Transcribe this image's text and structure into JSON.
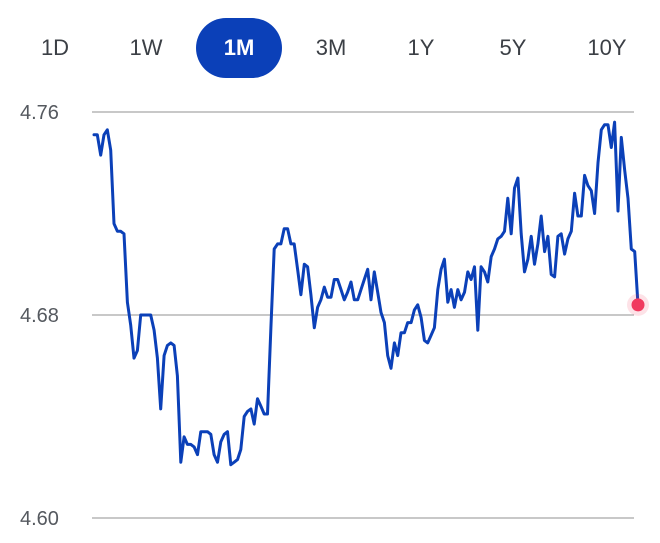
{
  "range_selector": {
    "tabs": [
      {
        "label": "1D",
        "active": false
      },
      {
        "label": "1W",
        "active": false
      },
      {
        "label": "1M",
        "active": true
      },
      {
        "label": "3M",
        "active": false
      },
      {
        "label": "1Y",
        "active": false
      },
      {
        "label": "5Y",
        "active": false
      },
      {
        "label": "10Y",
        "active": false
      }
    ]
  },
  "colors": {
    "line": "#0b40b8",
    "active_tab": "#0b40b8",
    "endpoint": "#f03a5f",
    "grid": "#c8c8c8"
  },
  "chart_data": {
    "type": "line",
    "grid": true,
    "ylim": [
      4.6,
      4.76
    ],
    "yticks": [
      {
        "value": 4.76,
        "label": "4.76"
      },
      {
        "value": 4.68,
        "label": "4.68"
      },
      {
        "value": 4.6,
        "label": "4.60"
      }
    ],
    "series": [
      {
        "values": [
          4.751,
          4.751,
          4.743,
          4.751,
          4.753,
          4.745,
          4.716,
          4.713,
          4.713,
          4.712,
          4.685,
          4.676,
          4.663,
          4.666,
          4.68,
          4.68,
          4.68,
          4.68,
          4.674,
          4.663,
          4.643,
          4.664,
          4.668,
          4.669,
          4.668,
          4.656,
          4.622,
          4.632,
          4.629,
          4.629,
          4.628,
          4.625,
          4.634,
          4.634,
          4.634,
          4.633,
          4.625,
          4.622,
          4.63,
          4.633,
          4.634,
          4.621,
          4.622,
          4.623,
          4.627,
          4.64,
          4.642,
          4.643,
          4.637,
          4.647,
          4.644,
          4.641,
          4.641,
          4.675,
          4.706,
          4.708,
          4.708,
          4.714,
          4.714,
          4.708,
          4.708,
          4.698,
          4.688,
          4.7,
          4.699,
          4.688,
          4.675,
          4.683,
          4.686,
          4.691,
          4.687,
          4.687,
          4.694,
          4.694,
          4.69,
          4.686,
          4.689,
          4.693,
          4.686,
          4.686,
          4.69,
          4.694,
          4.698,
          4.686,
          4.697,
          4.689,
          4.681,
          4.677,
          4.664,
          4.659,
          4.669,
          4.664,
          4.673,
          4.673,
          4.677,
          4.677,
          4.682,
          4.684,
          4.679,
          4.67,
          4.669,
          4.672,
          4.675,
          4.69,
          4.698,
          4.702,
          4.685,
          4.69,
          4.683,
          4.69,
          4.686,
          4.689,
          4.697,
          4.694,
          4.699,
          4.674,
          4.699,
          4.697,
          4.693,
          4.703,
          4.706,
          4.71,
          4.711,
          4.713,
          4.726,
          4.712,
          4.73,
          4.734,
          4.712,
          4.697,
          4.702,
          4.711,
          4.7,
          4.708,
          4.719,
          4.705,
          4.711,
          4.696,
          4.695,
          4.711,
          4.712,
          4.704,
          4.71,
          4.713,
          4.728,
          4.719,
          4.719,
          4.735,
          4.731,
          4.729,
          4.72,
          4.74,
          4.753,
          4.755,
          4.755,
          4.746,
          4.756,
          4.721,
          4.75,
          4.737,
          4.726,
          4.706,
          4.705,
          4.684
        ]
      }
    ]
  }
}
